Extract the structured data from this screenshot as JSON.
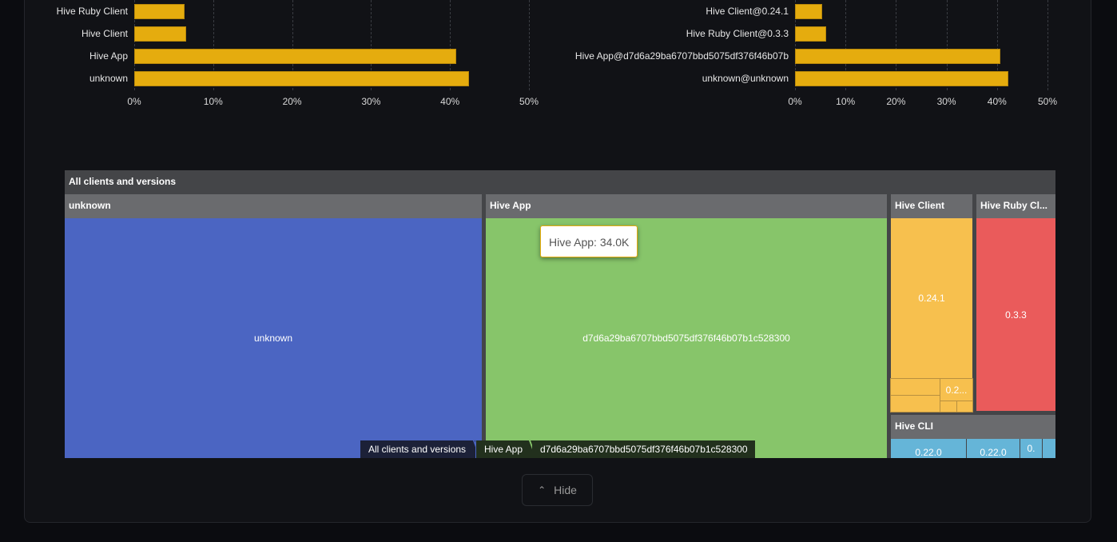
{
  "chart_data": [
    {
      "type": "bar",
      "orientation": "horizontal",
      "categories": [
        "Hive Ruby Client",
        "Hive Client",
        "Hive App",
        "unknown"
      ],
      "values": [
        6.4,
        6.6,
        40.8,
        42.4
      ],
      "xlim": [
        0,
        50
      ],
      "xticks": [
        "0%",
        "10%",
        "20%",
        "30%",
        "40%",
        "50%"
      ],
      "grid": true,
      "color": "#e5ac0e"
    },
    {
      "type": "bar",
      "orientation": "horizontal",
      "categories": [
        "Hive Client@0.24.1",
        "Hive Ruby Client@0.3.3",
        "Hive App@d7d6a29ba6707bbd5075df376f46b07b",
        "unknown@unknown"
      ],
      "values": [
        5.4,
        6.2,
        40.7,
        42.2
      ],
      "xlim": [
        0,
        50
      ],
      "xticks": [
        "0%",
        "10%",
        "20%",
        "30%",
        "40%",
        "50%"
      ],
      "grid": true,
      "color": "#e5ac0e"
    },
    {
      "type": "treemap",
      "root": "All clients and versions",
      "groups": [
        {
          "name": "unknown",
          "color": "#4b65c2",
          "children": [
            "unknown"
          ]
        },
        {
          "name": "Hive App",
          "color": "#87c56a",
          "children": [
            "d7d6a29ba6707bbd5075df376f46b07b1c528300"
          ]
        },
        {
          "name": "Hive Client",
          "color": "#f7c04e",
          "children": [
            "0.24.1",
            "0.2..."
          ]
        },
        {
          "name": "Hive Ruby Cl...",
          "color": "#ea5b5b",
          "children": [
            "0.3.3"
          ]
        },
        {
          "name": "Hive CLI",
          "color": "#65b5d8",
          "children": [
            "0.22.0",
            "0.22.0",
            "0."
          ]
        }
      ],
      "tooltip": "Hive App: 34.0K"
    }
  ],
  "breadcrumb": [
    "All clients and versions",
    "Hive App",
    "d7d6a29ba6707bbd5075df376f46b07b1c528300"
  ],
  "hide_label": "Hide"
}
